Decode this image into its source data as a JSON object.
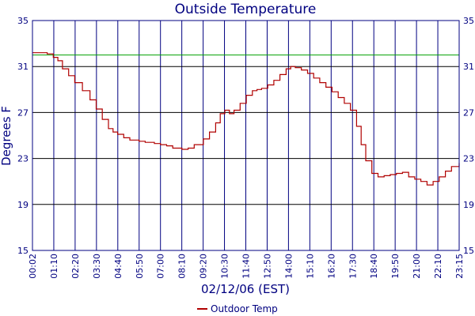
{
  "chart_data": {
    "type": "line",
    "title": "Outside Temperature",
    "xlabel": "02/12/06 (EST)",
    "ylabel": "Degrees F",
    "ylim": [
      15,
      35
    ],
    "yticks": [
      "15",
      "19",
      "23",
      "27",
      "31",
      "35"
    ],
    "xticks": [
      "00:02",
      "01:10",
      "02:20",
      "03:30",
      "04:40",
      "05:50",
      "07:00",
      "08:10",
      "09:20",
      "10:30",
      "11:40",
      "12:50",
      "14:00",
      "15:10",
      "16:20",
      "17:30",
      "18:40",
      "19:50",
      "21:00",
      "22:10",
      "23:15"
    ],
    "grid": true,
    "colors": {
      "frame": "#000080",
      "series": "#b00000",
      "reference": "#00a000"
    },
    "reference_line": {
      "y": 32,
      "color": "#00a000"
    },
    "legend_position": "bottom-center",
    "series": [
      {
        "name": "Outdoor Temp",
        "color": "#b00000",
        "x": [
          "00:02",
          "00:30",
          "00:50",
          "01:10",
          "01:25",
          "01:40",
          "02:00",
          "02:20",
          "02:45",
          "03:10",
          "03:30",
          "03:50",
          "04:10",
          "04:25",
          "04:40",
          "05:00",
          "05:20",
          "05:50",
          "06:10",
          "06:40",
          "07:00",
          "07:20",
          "07:40",
          "08:10",
          "08:30",
          "08:50",
          "09:20",
          "09:40",
          "10:00",
          "10:15",
          "10:30",
          "10:45",
          "11:00",
          "11:20",
          "11:40",
          "12:00",
          "12:15",
          "12:30",
          "12:50",
          "13:10",
          "13:30",
          "13:50",
          "14:05",
          "14:20",
          "14:40",
          "15:00",
          "15:20",
          "15:40",
          "16:00",
          "16:20",
          "16:40",
          "17:00",
          "17:20",
          "17:40",
          "17:55",
          "18:10",
          "18:30",
          "18:50",
          "19:10",
          "19:30",
          "19:50",
          "20:10",
          "20:30",
          "20:50",
          "21:10",
          "21:30",
          "21:50",
          "22:10",
          "22:30",
          "22:50",
          "23:15"
        ],
        "values": [
          32.2,
          32.2,
          32.1,
          31.8,
          31.5,
          30.8,
          30.2,
          29.6,
          28.9,
          28.1,
          27.3,
          26.4,
          25.6,
          25.3,
          25.1,
          24.8,
          24.6,
          24.5,
          24.4,
          24.3,
          24.2,
          24.1,
          23.9,
          23.8,
          23.9,
          24.2,
          24.7,
          25.3,
          26.1,
          26.9,
          27.2,
          26.9,
          27.2,
          27.8,
          28.5,
          28.9,
          29.0,
          29.1,
          29.4,
          29.8,
          30.3,
          30.8,
          31.0,
          30.9,
          30.7,
          30.4,
          30.0,
          29.6,
          29.2,
          28.8,
          28.3,
          27.8,
          27.2,
          25.8,
          24.2,
          22.8,
          21.7,
          21.4,
          21.5,
          21.6,
          21.7,
          21.8,
          21.4,
          21.2,
          21.0,
          20.7,
          21.0,
          21.4,
          21.9,
          22.3,
          22.6
        ]
      }
    ]
  }
}
